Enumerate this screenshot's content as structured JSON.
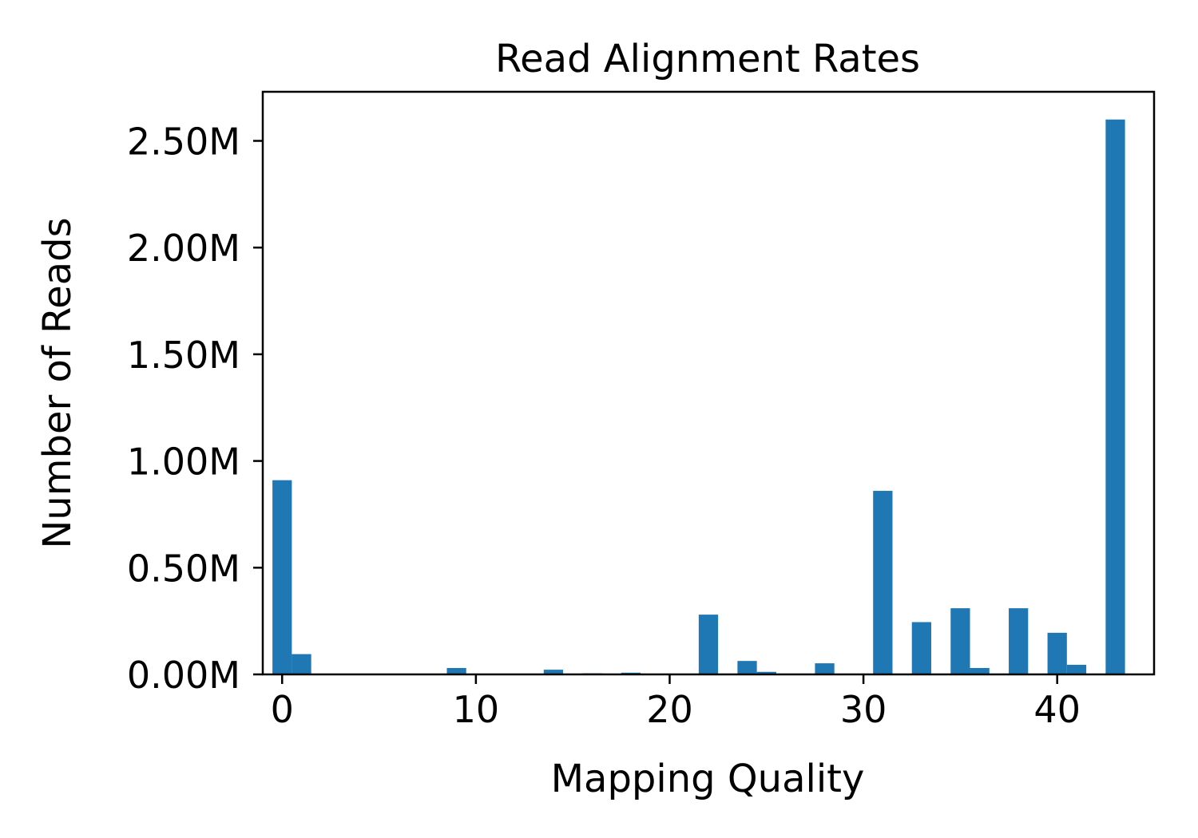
{
  "chart_data": {
    "type": "bar",
    "title": "Read Alignment Rates",
    "xlabel": "Mapping Quality",
    "ylabel": "Number of Reads",
    "xlim": [
      -1,
      45
    ],
    "ylim": [
      0,
      2.73
    ],
    "y_unit_suffix": "M",
    "xticks": [
      0,
      10,
      20,
      30,
      40
    ],
    "yticks": [
      0.0,
      0.5,
      1.0,
      1.5,
      2.0,
      2.5
    ],
    "ytick_labels": [
      "0.00M",
      "0.50M",
      "1.00M",
      "1.50M",
      "2.00M",
      "2.50M"
    ],
    "bar_width": 1.0,
    "grid": false,
    "legend": "none",
    "color": "#1f77b4",
    "bars": [
      {
        "x": 0,
        "value": 0.91
      },
      {
        "x": 1,
        "value": 0.095
      },
      {
        "x": 9,
        "value": 0.03
      },
      {
        "x": 14,
        "value": 0.022
      },
      {
        "x": 16,
        "value": 0.005
      },
      {
        "x": 18,
        "value": 0.008
      },
      {
        "x": 22,
        "value": 0.28
      },
      {
        "x": 24,
        "value": 0.063
      },
      {
        "x": 25,
        "value": 0.012
      },
      {
        "x": 28,
        "value": 0.052
      },
      {
        "x": 31,
        "value": 0.86
      },
      {
        "x": 33,
        "value": 0.245
      },
      {
        "x": 35,
        "value": 0.31
      },
      {
        "x": 36,
        "value": 0.03
      },
      {
        "x": 38,
        "value": 0.31
      },
      {
        "x": 40,
        "value": 0.195
      },
      {
        "x": 41,
        "value": 0.045
      },
      {
        "x": 43,
        "value": 2.6
      }
    ]
  }
}
